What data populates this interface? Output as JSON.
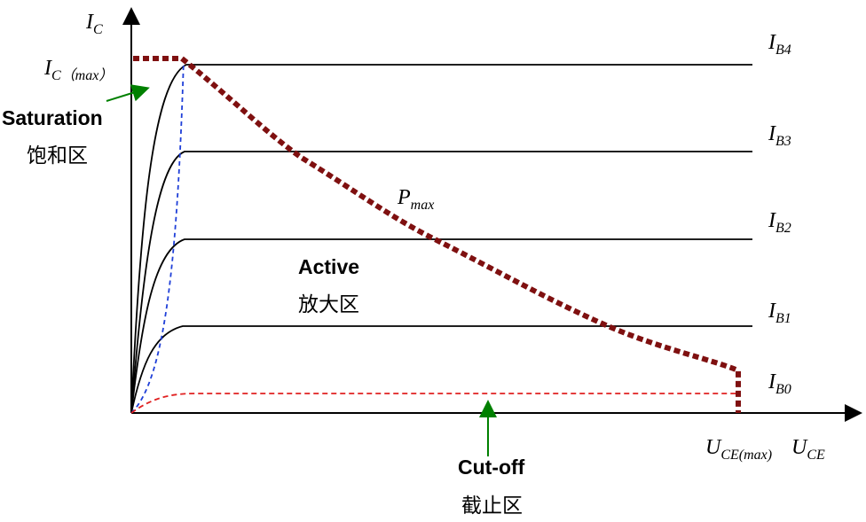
{
  "axes": {
    "y_label": {
      "main": "I",
      "sub": "C"
    },
    "x_label": {
      "main": "U",
      "sub": "CE"
    }
  },
  "annotations": {
    "ic_max": {
      "main": "I",
      "sub": "C（max）"
    },
    "u_ce_max": {
      "main": "U",
      "sub": "CE(max)"
    },
    "p_max": {
      "main": "P",
      "sub": "max"
    }
  },
  "regions": {
    "saturation": {
      "en": "Saturation",
      "zh": "饱和区"
    },
    "active": {
      "en": "Active",
      "zh": "放大区"
    },
    "cutoff": {
      "en": "Cut-off",
      "zh": "截止区"
    }
  },
  "curves": [
    {
      "main": "I",
      "sub": "B4"
    },
    {
      "main": "I",
      "sub": "B3"
    },
    {
      "main": "I",
      "sub": "B2"
    },
    {
      "main": "I",
      "sub": "B1"
    },
    {
      "main": "I",
      "sub": "B0"
    }
  ]
}
